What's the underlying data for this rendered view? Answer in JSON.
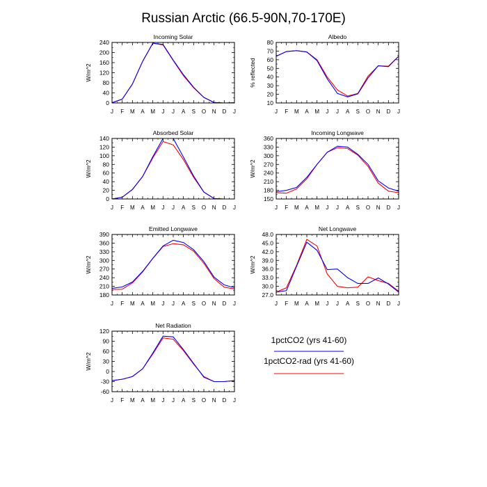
{
  "figure": {
    "title": "Russian Arctic (66.5-90N,70-170E)",
    "series_colors": [
      "#0000ff",
      "#ff0000"
    ],
    "legend": [
      {
        "label": "1pctCO2 (yrs 41-60)",
        "color": "#0000ff"
      },
      {
        "label": "1pctCO2-rad (yrs 41-60)",
        "color": "#ff0000"
      }
    ]
  },
  "chart_data": [
    {
      "type": "line",
      "title": "Incoming Solar",
      "xlabel": "",
      "ylabel": "W/m^2",
      "categories": [
        "J",
        "F",
        "M",
        "A",
        "M",
        "J",
        "J",
        "A",
        "S",
        "O",
        "N",
        "D",
        "J"
      ],
      "ylim": [
        0,
        240
      ],
      "yticks": [
        0,
        40,
        80,
        120,
        160,
        200,
        240
      ],
      "series": [
        {
          "name": "1pctCO2 (yrs 41-60)",
          "values": [
            1,
            15,
            75,
            165,
            237,
            232,
            170,
            112,
            62,
            22,
            2,
            0,
            1
          ]
        },
        {
          "name": "1pctCO2-rad (yrs 41-60)",
          "values": [
            1,
            15,
            75,
            165,
            237,
            230,
            168,
            108,
            60,
            22,
            2,
            0,
            1
          ]
        }
      ]
    },
    {
      "type": "line",
      "title": "Albedo",
      "xlabel": "",
      "ylabel": "% reflected",
      "categories": [
        "J",
        "F",
        "M",
        "A",
        "M",
        "J",
        "J",
        "A",
        "S",
        "O",
        "N",
        "D",
        "J"
      ],
      "ylim": [
        10,
        80
      ],
      "yticks": [
        10,
        20,
        30,
        40,
        50,
        60,
        70,
        80
      ],
      "series": [
        {
          "name": "1pctCO2 (yrs 41-60)",
          "values": [
            64,
            69.5,
            70.5,
            69,
            59,
            38,
            21,
            17,
            20.5,
            39,
            53,
            52,
            64
          ]
        },
        {
          "name": "1pctCO2-rad (yrs 41-60)",
          "values": [
            64,
            69.5,
            70.5,
            69,
            60,
            40,
            25,
            18,
            21,
            41,
            53,
            52.5,
            64
          ]
        }
      ]
    },
    {
      "type": "line",
      "title": "Absorbed Solar",
      "xlabel": "",
      "ylabel": "W/m^2",
      "categories": [
        "J",
        "F",
        "M",
        "A",
        "M",
        "J",
        "J",
        "A",
        "S",
        "O",
        "N",
        "D",
        "J"
      ],
      "ylim": [
        0,
        140
      ],
      "yticks": [
        0,
        20,
        40,
        60,
        80,
        100,
        120,
        140
      ],
      "series": [
        {
          "name": "1pctCO2 (yrs 41-60)",
          "values": [
            0,
            4,
            22,
            52,
            98,
            140,
            140,
            97,
            53,
            16,
            1,
            0,
            0
          ]
        },
        {
          "name": "1pctCO2-rad (yrs 41-60)",
          "values": [
            0,
            4,
            22,
            52,
            95,
            133,
            125,
            91,
            50,
            16,
            1,
            0,
            0
          ]
        }
      ]
    },
    {
      "type": "line",
      "title": "Incoming Longwave",
      "xlabel": "",
      "ylabel": "W/m^2",
      "categories": [
        "J",
        "F",
        "M",
        "A",
        "M",
        "J",
        "J",
        "A",
        "S",
        "O",
        "N",
        "D",
        "J"
      ],
      "ylim": [
        150,
        360
      ],
      "yticks": [
        150,
        180,
        210,
        240,
        270,
        300,
        330,
        360
      ],
      "series": [
        {
          "name": "1pctCO2 (yrs 41-60)",
          "values": [
            175,
            180,
            190,
            225,
            270,
            312,
            333,
            330,
            305,
            270,
            213,
            188,
            177
          ]
        },
        {
          "name": "1pctCO2-rad (yrs 41-60)",
          "values": [
            172,
            170,
            185,
            220,
            270,
            312,
            328,
            325,
            302,
            263,
            205,
            177,
            172
          ]
        }
      ]
    },
    {
      "type": "line",
      "title": "Emitted Longwave",
      "xlabel": "",
      "ylabel": "W/m^2",
      "categories": [
        "J",
        "F",
        "M",
        "A",
        "M",
        "J",
        "J",
        "A",
        "S",
        "O",
        "N",
        "D",
        "J"
      ],
      "ylim": [
        180,
        390
      ],
      "yticks": [
        180,
        210,
        240,
        270,
        300,
        330,
        360,
        390
      ],
      "series": [
        {
          "name": "1pctCO2 (yrs 41-60)",
          "values": [
            203,
            208,
            225,
            262,
            307,
            350,
            370,
            362,
            337,
            296,
            242,
            215,
            205
          ]
        },
        {
          "name": "1pctCO2-rad (yrs 41-60)",
          "values": [
            199,
            200,
            222,
            260,
            307,
            348,
            358,
            354,
            332,
            290,
            237,
            207,
            201
          ]
        }
      ]
    },
    {
      "type": "line",
      "title": "Net Longwave",
      "xlabel": "",
      "ylabel": "W/m^2",
      "categories": [
        "J",
        "F",
        "M",
        "A",
        "M",
        "J",
        "J",
        "A",
        "S",
        "O",
        "N",
        "D",
        "J"
      ],
      "ylim": [
        27,
        48
      ],
      "yticks": [
        27.0,
        30.0,
        33.0,
        36.0,
        39.0,
        42.0,
        45.0,
        48.0
      ],
      "series": [
        {
          "name": "1pctCO2 (yrs 41-60)",
          "values": [
            28.0,
            28.5,
            37.0,
            45.3,
            42.5,
            35.8,
            36.0,
            33.0,
            31.0,
            31.0,
            32.9,
            30.8,
            28.0
          ]
        },
        {
          "name": "1pctCO2-rad (yrs 41-60)",
          "values": [
            28.0,
            29.5,
            37.3,
            46.3,
            44.0,
            34.3,
            30.0,
            29.5,
            29.7,
            33.3,
            32.0,
            31.0,
            28.3
          ]
        }
      ]
    },
    {
      "type": "line",
      "title": "Net Radiation",
      "xlabel": "",
      "ylabel": "W/m^2",
      "categories": [
        "J",
        "F",
        "M",
        "A",
        "M",
        "J",
        "J",
        "A",
        "S",
        "O",
        "N",
        "D",
        "J"
      ],
      "ylim": [
        -60,
        120
      ],
      "yticks": [
        -60,
        -30,
        0,
        30,
        60,
        90,
        120
      ],
      "series": [
        {
          "name": "1pctCO2 (yrs 41-60)",
          "values": [
            -27,
            -23,
            -15,
            8,
            55,
            105,
            103,
            65,
            24,
            -17,
            -30,
            -30,
            -27
          ]
        },
        {
          "name": "1pctCO2-rad (yrs 41-60)",
          "values": [
            -27,
            -23,
            -15,
            8,
            52,
            100,
            96,
            62,
            22,
            -15,
            -30,
            -30,
            -27
          ]
        }
      ]
    }
  ]
}
